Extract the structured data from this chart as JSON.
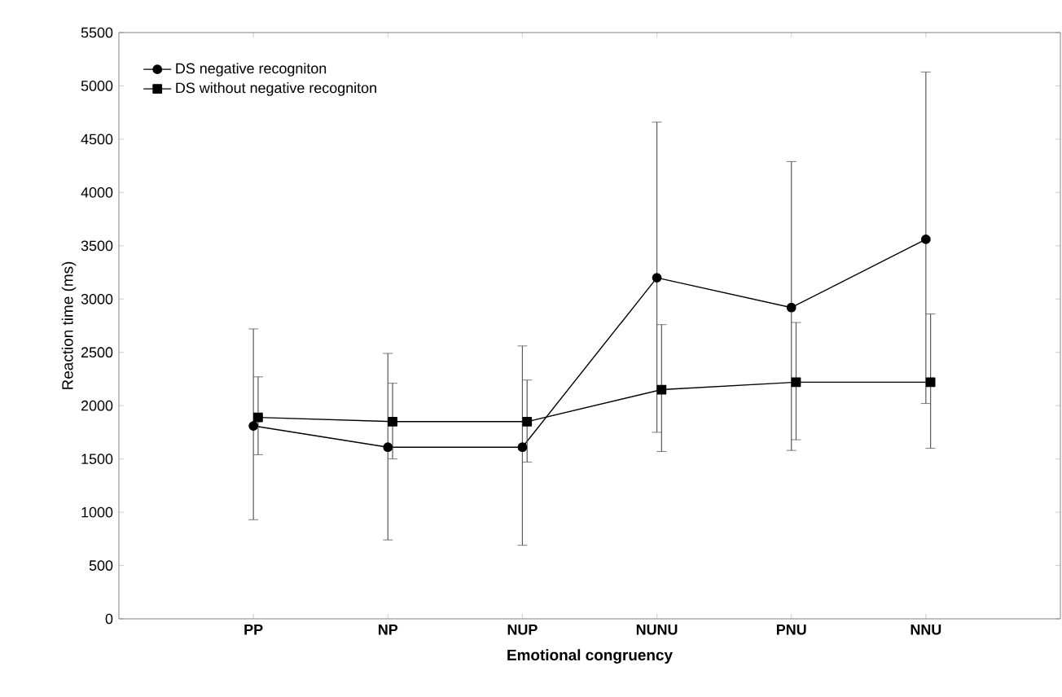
{
  "chart_data": {
    "type": "line",
    "xlabel": "**Emotional congruency**",
    "ylabel": "Reaction time (ms)",
    "categories": [
      "PP",
      "NP",
      "NUP",
      "NUNU",
      "PNU",
      "NNU"
    ],
    "ylim": [
      0,
      5500
    ],
    "yticks": [
      0,
      500,
      1000,
      1500,
      2000,
      2500,
      3000,
      3500,
      4000,
      4500,
      5000,
      5500
    ],
    "legend": "top left",
    "grid": false,
    "line_style": "solid",
    "series": [
      {
        "name": "DS negative recogniton",
        "color": "#000000",
        "marker": "circle",
        "values": [
          1810,
          1610,
          1610,
          3200,
          2920,
          3560
        ],
        "errors": [
          [
            930,
            2720
          ],
          [
            740,
            2490
          ],
          [
            690,
            2560
          ],
          [
            1750,
            4660
          ],
          [
            1580,
            4290
          ],
          [
            2020,
            5130
          ]
        ]
      },
      {
        "name": "DS without negative recogniton",
        "color": "#000000",
        "marker": "square",
        "values": [
          1890,
          1850,
          1850,
          2150,
          2220,
          2220
        ],
        "errors": [
          [
            1540,
            2270
          ],
          [
            1500,
            2210
          ],
          [
            1470,
            2240
          ],
          [
            1570,
            2760
          ],
          [
            1680,
            2780
          ],
          [
            1600,
            2860
          ]
        ]
      }
    ]
  }
}
